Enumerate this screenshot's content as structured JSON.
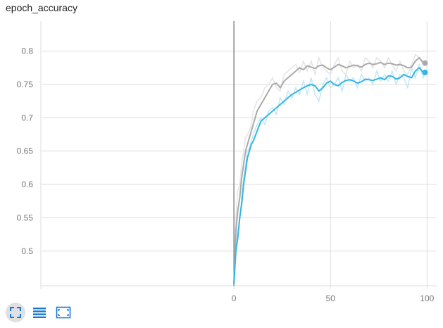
{
  "title": "epoch_accuracy",
  "toolbar": {
    "buttons": [
      {
        "name": "expand",
        "icon": "fullscreen-icon"
      },
      {
        "name": "log-scale",
        "icon": "lines-icon"
      },
      {
        "name": "fit-domain",
        "icon": "fit-domain-icon"
      }
    ]
  },
  "colors": {
    "blue": "#33b5e5",
    "blue_raw": "#bfe8f7",
    "gray": "#aaaaaa",
    "gray_raw": "#e4e4e4",
    "grid": "#dddddd",
    "axis": "#888888"
  },
  "chart_data": {
    "type": "line",
    "title": "epoch_accuracy",
    "xlabel": "",
    "ylabel": "",
    "xlim": [
      -100,
      105
    ],
    "ylim": [
      0.448,
      0.845
    ],
    "x_ticks": [
      0,
      50,
      100
    ],
    "y_ticks": [
      0.5,
      0.55,
      0.6,
      0.65,
      0.7,
      0.75,
      0.8
    ],
    "y_tick_labels": [
      "0.5",
      "0.55",
      "0.6",
      "0.65",
      "0.7",
      "0.75",
      "0.8"
    ],
    "grid": true,
    "series": [
      {
        "color": "#aaaaaa",
        "raw_color": "#e4e4e4",
        "x": [
          0,
          1,
          2,
          3,
          4,
          5,
          6,
          7,
          8,
          9,
          10,
          12,
          14,
          16,
          18,
          20,
          22,
          24,
          26,
          28,
          30,
          32,
          34,
          36,
          38,
          40,
          42,
          44,
          46,
          48,
          50,
          52,
          54,
          56,
          58,
          60,
          62,
          64,
          66,
          68,
          70,
          72,
          74,
          76,
          78,
          80,
          82,
          84,
          86,
          88,
          90,
          92,
          94,
          96,
          98,
          99
        ],
        "values": [
          0.45,
          0.53,
          0.56,
          0.58,
          0.61,
          0.63,
          0.65,
          0.66,
          0.67,
          0.68,
          0.69,
          0.71,
          0.72,
          0.73,
          0.74,
          0.75,
          0.752,
          0.745,
          0.755,
          0.76,
          0.765,
          0.77,
          0.775,
          0.772,
          0.778,
          0.776,
          0.774,
          0.778,
          0.779,
          0.775,
          0.772,
          0.776,
          0.78,
          0.778,
          0.775,
          0.777,
          0.779,
          0.778,
          0.776,
          0.78,
          0.782,
          0.78,
          0.781,
          0.783,
          0.78,
          0.782,
          0.781,
          0.779,
          0.78,
          0.778,
          0.775,
          0.776,
          0.785,
          0.79,
          0.783,
          0.782
        ],
        "raw_values": [
          0.45,
          0.55,
          0.59,
          0.6,
          0.63,
          0.65,
          0.67,
          0.675,
          0.68,
          0.69,
          0.71,
          0.725,
          0.73,
          0.745,
          0.75,
          0.76,
          0.745,
          0.74,
          0.765,
          0.77,
          0.775,
          0.78,
          0.768,
          0.785,
          0.77,
          0.785,
          0.765,
          0.79,
          0.775,
          0.77,
          0.765,
          0.78,
          0.79,
          0.77,
          0.765,
          0.785,
          0.775,
          0.78,
          0.77,
          0.79,
          0.785,
          0.775,
          0.79,
          0.785,
          0.775,
          0.79,
          0.78,
          0.77,
          0.785,
          0.77,
          0.765,
          0.78,
          0.795,
          0.79,
          0.78,
          0.782
        ]
      },
      {
        "color": "#33b5e5",
        "raw_color": "#bfe8f7",
        "x": [
          0,
          1,
          2,
          3,
          4,
          5,
          6,
          7,
          8,
          9,
          10,
          12,
          14,
          16,
          18,
          20,
          22,
          24,
          26,
          28,
          30,
          32,
          34,
          36,
          38,
          40,
          42,
          44,
          46,
          48,
          50,
          52,
          54,
          56,
          58,
          60,
          62,
          64,
          66,
          68,
          70,
          72,
          74,
          76,
          78,
          80,
          82,
          84,
          86,
          88,
          90,
          92,
          94,
          96,
          98,
          99
        ],
        "values": [
          0.45,
          0.5,
          0.52,
          0.55,
          0.57,
          0.6,
          0.62,
          0.64,
          0.65,
          0.66,
          0.665,
          0.68,
          0.695,
          0.7,
          0.705,
          0.71,
          0.715,
          0.72,
          0.725,
          0.73,
          0.735,
          0.738,
          0.742,
          0.745,
          0.748,
          0.75,
          0.748,
          0.74,
          0.745,
          0.752,
          0.755,
          0.75,
          0.748,
          0.753,
          0.756,
          0.757,
          0.755,
          0.752,
          0.754,
          0.758,
          0.757,
          0.756,
          0.758,
          0.76,
          0.757,
          0.763,
          0.762,
          0.758,
          0.76,
          0.765,
          0.762,
          0.76,
          0.77,
          0.775,
          0.768,
          0.768
        ],
        "raw_values": [
          0.45,
          0.51,
          0.53,
          0.55,
          0.58,
          0.61,
          0.63,
          0.65,
          0.655,
          0.665,
          0.675,
          0.69,
          0.7,
          0.69,
          0.71,
          0.715,
          0.705,
          0.73,
          0.72,
          0.74,
          0.73,
          0.745,
          0.735,
          0.755,
          0.735,
          0.76,
          0.735,
          0.725,
          0.75,
          0.76,
          0.745,
          0.75,
          0.76,
          0.74,
          0.765,
          0.755,
          0.76,
          0.745,
          0.765,
          0.755,
          0.76,
          0.75,
          0.77,
          0.755,
          0.765,
          0.755,
          0.77,
          0.75,
          0.765,
          0.76,
          0.745,
          0.775,
          0.76,
          0.78,
          0.76,
          0.768
        ]
      }
    ],
    "vertical_line_x": 0
  }
}
